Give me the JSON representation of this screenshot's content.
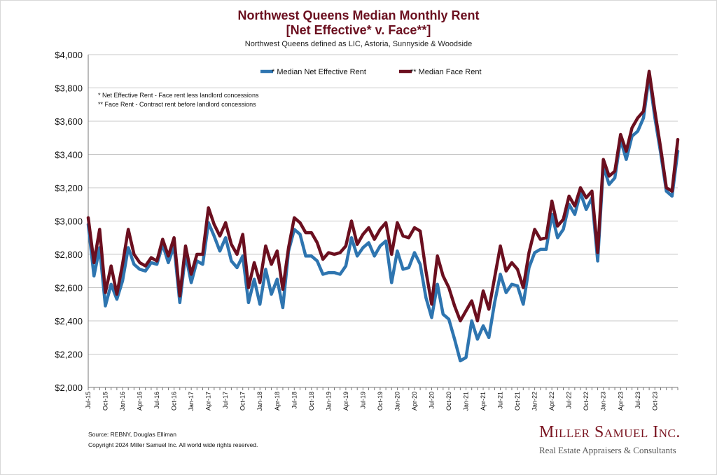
{
  "header": {
    "title_line1": "Northwest Queens Median Monthly Rent",
    "title_line2": "[Net Effective* v. Face**]",
    "subtitle": "Northwest Queens defined as LIC, Astoria, Sunnyside & Woodside"
  },
  "notes": {
    "net_effective": "* Net Effective Rent - Face rent less landlord concessions",
    "face": "** Face Rent - Contract rent before landlord concessions"
  },
  "footer": {
    "source": "Source: REBNY, Douglas Elliman",
    "copyright": "Copyright 2024 Miller Samuel Inc.  All world wide rights reserved.",
    "logo_name": "Miller Samuel Inc.",
    "logo_tagline": "Real Estate Appraisers & Consultants"
  },
  "chart_data": {
    "type": "line",
    "title": "Northwest Queens Median Monthly Rent",
    "xlabel": "",
    "ylabel": "",
    "ylim": [
      2000,
      4000
    ],
    "y_ticks": [
      2000,
      2200,
      2400,
      2600,
      2800,
      3000,
      3200,
      3400,
      3600,
      3800,
      4000
    ],
    "y_tick_labels": [
      "$2,000",
      "$2,200",
      "$2,400",
      "$2,600",
      "$2,800",
      "$3,000",
      "$3,200",
      "$3,400",
      "$3,600",
      "$3,800",
      "$4,000"
    ],
    "x_start": "Jul-15",
    "x_tick_every": 3,
    "x_tick_labels": [
      "Jul-15",
      "Oct-15",
      "Jan-16",
      "Apr-16",
      "Jul-16",
      "Oct-16",
      "Jan-17",
      "Apr-17",
      "Jul-17",
      "Oct-17",
      "Jan-18",
      "Apr-18",
      "Jul-18",
      "Oct-18",
      "Jan-19",
      "Apr-19",
      "Jul-19",
      "Oct-19",
      "Jan-20",
      "Apr-20",
      "Jul-20",
      "Oct-20",
      "Jan-21",
      "Apr-21",
      "Jul-21",
      "Oct-21",
      "Jan-22",
      "Apr-22",
      "Jul-22",
      "Oct-22",
      "Jan-23",
      "Apr-23",
      "Jul-23",
      "Oct-23"
    ],
    "grid": true,
    "legend_position": "top",
    "series": [
      {
        "name": "* Median Net Effective Rent",
        "color": "#2e75b0",
        "values": [
          2980,
          2670,
          2840,
          2490,
          2620,
          2530,
          2640,
          2840,
          2740,
          2710,
          2700,
          2750,
          2740,
          2860,
          2750,
          2850,
          2510,
          2800,
          2630,
          2760,
          2740,
          2990,
          2910,
          2820,
          2900,
          2760,
          2720,
          2790,
          2510,
          2650,
          2500,
          2710,
          2560,
          2650,
          2480,
          2820,
          2950,
          2920,
          2790,
          2790,
          2760,
          2680,
          2690,
          2690,
          2680,
          2730,
          2900,
          2790,
          2840,
          2870,
          2790,
          2850,
          2880,
          2630,
          2820,
          2710,
          2720,
          2810,
          2740,
          2540,
          2420,
          2620,
          2440,
          2410,
          2290,
          2160,
          2180,
          2400,
          2290,
          2370,
          2300,
          2510,
          2680,
          2570,
          2620,
          2610,
          2500,
          2720,
          2810,
          2830,
          2830,
          3040,
          2900,
          2950,
          3100,
          3040,
          3170,
          3070,
          3140,
          2760,
          3330,
          3220,
          3260,
          3490,
          3370,
          3510,
          3540,
          3620,
          3870,
          3620,
          3410,
          3180,
          3150,
          3420
        ]
      },
      {
        "name": "** Median Face Rent",
        "color": "#6b0f1f",
        "values": [
          3020,
          2750,
          2950,
          2570,
          2730,
          2560,
          2740,
          2950,
          2800,
          2750,
          2730,
          2780,
          2760,
          2890,
          2790,
          2900,
          2550,
          2850,
          2680,
          2800,
          2800,
          3080,
          2980,
          2910,
          2990,
          2860,
          2800,
          2920,
          2600,
          2750,
          2630,
          2850,
          2740,
          2820,
          2590,
          2840,
          3020,
          2990,
          2930,
          2930,
          2870,
          2770,
          2810,
          2800,
          2810,
          2850,
          3000,
          2860,
          2920,
          2960,
          2890,
          2950,
          2990,
          2800,
          2990,
          2910,
          2900,
          2960,
          2940,
          2700,
          2500,
          2790,
          2670,
          2600,
          2490,
          2400,
          2460,
          2520,
          2400,
          2580,
          2470,
          2660,
          2850,
          2700,
          2750,
          2710,
          2600,
          2810,
          2950,
          2890,
          2900,
          3120,
          2970,
          3010,
          3150,
          3090,
          3200,
          3140,
          3180,
          2810,
          3370,
          3270,
          3300,
          3520,
          3420,
          3560,
          3620,
          3660,
          3900,
          3660,
          3440,
          3200,
          3180,
          3490
        ]
      }
    ]
  }
}
